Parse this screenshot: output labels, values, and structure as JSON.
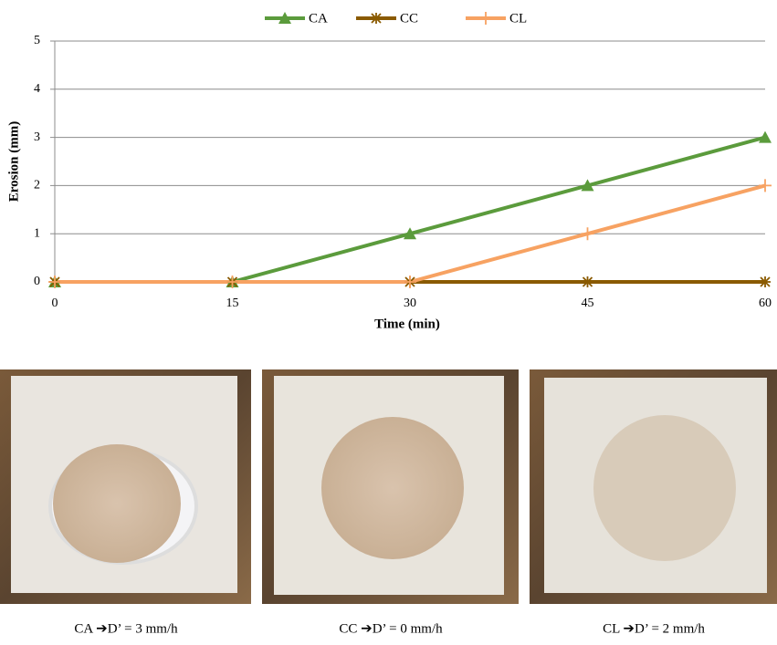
{
  "chart_data": {
    "type": "line",
    "xlabel": "Time (min)",
    "ylabel": "Erosion (mm)",
    "x": [
      0,
      15,
      30,
      45,
      60
    ],
    "xlim": [
      0,
      60
    ],
    "xticks": [
      0,
      15,
      30,
      45,
      60
    ],
    "ylim": [
      0,
      5
    ],
    "yticks": [
      0,
      1,
      2,
      3,
      4,
      5
    ],
    "grid": true,
    "legend": "top",
    "series": [
      {
        "name": "CA",
        "color": "#5b9b3c",
        "marker": "triangle",
        "values": [
          0,
          0,
          1,
          2,
          3
        ]
      },
      {
        "name": "CC",
        "color": "#8a5a00",
        "marker": "asterisk",
        "values": [
          0,
          0,
          0,
          0,
          0
        ]
      },
      {
        "name": "CL",
        "color": "#f7a262",
        "marker": "plus",
        "values": [
          0,
          0,
          0,
          1,
          2
        ]
      }
    ]
  },
  "photos": [
    {
      "caption": "CA ➔D’ = 3 mm/h"
    },
    {
      "caption": "CC ➔D’ = 0 mm/h"
    },
    {
      "caption": "CL ➔D’ = 2 mm/h"
    }
  ]
}
